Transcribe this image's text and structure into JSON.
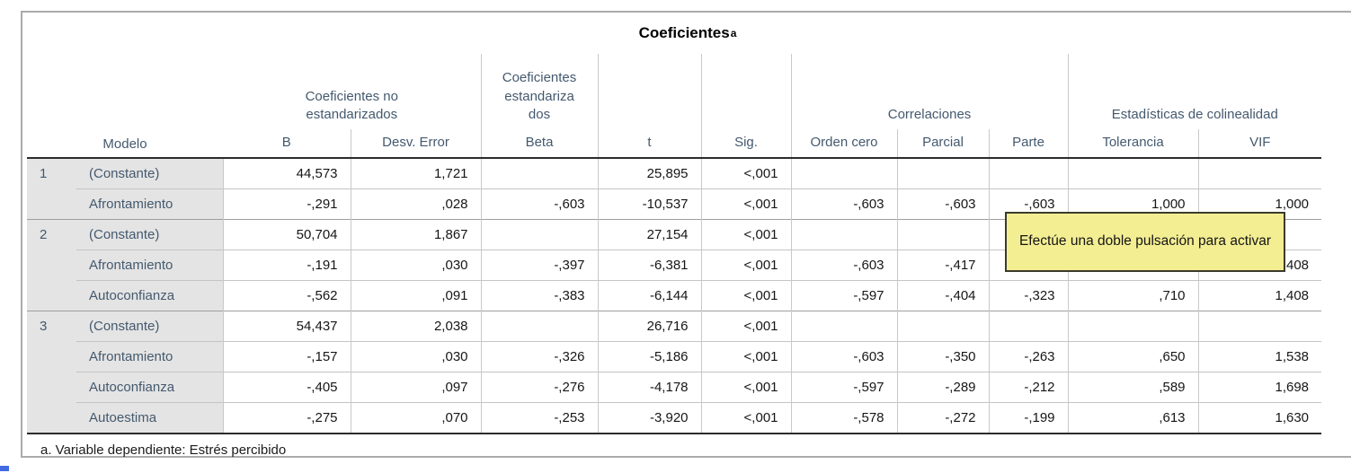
{
  "title": {
    "text": "Coeficientes",
    "superscript": "a"
  },
  "table": {
    "model_column_label": "Modelo",
    "spanners": [
      {
        "label": "Coeficientes no estandarizados"
      },
      {
        "label": "Coeficientes estandarizados"
      },
      {
        "label": ""
      },
      {
        "label": ""
      },
      {
        "label": "Correlaciones"
      },
      {
        "label": "Estadísticas de colinealidad"
      }
    ],
    "columns": [
      "B",
      "Desv. Error",
      "Beta",
      "t",
      "Sig.",
      "Orden cero",
      "Parcial",
      "Parte",
      "Tolerancia",
      "VIF"
    ],
    "rows": [
      {
        "model": "1",
        "variable": "(Constante)",
        "model_start": true,
        "values": [
          "44,573",
          "1,721",
          "",
          "25,895",
          "<,001",
          "",
          "",
          "",
          "",
          ""
        ]
      },
      {
        "model": "",
        "variable": "Afrontamiento",
        "model_start": false,
        "values": [
          "-,291",
          ",028",
          "-,603",
          "-10,537",
          "<,001",
          "-,603",
          "-,603",
          "-,603",
          "1,000",
          "1,000"
        ]
      },
      {
        "model": "2",
        "variable": "(Constante)",
        "model_start": true,
        "values": [
          "50,704",
          "1,867",
          "",
          "27,154",
          "<,001",
          "",
          "",
          "",
          "",
          ""
        ]
      },
      {
        "model": "",
        "variable": "Afrontamiento",
        "model_start": false,
        "values": [
          "-,191",
          ",030",
          "-,397",
          "-6,381",
          "<,001",
          "-,603",
          "-,417",
          "",
          "",
          "1,408"
        ]
      },
      {
        "model": "",
        "variable": "Autoconfianza",
        "model_start": false,
        "values": [
          "-,562",
          ",091",
          "-,383",
          "-6,144",
          "<,001",
          "-,597",
          "-,404",
          "-,323",
          ",710",
          "1,408"
        ]
      },
      {
        "model": "3",
        "variable": "(Constante)",
        "model_start": true,
        "values": [
          "54,437",
          "2,038",
          "",
          "26,716",
          "<,001",
          "",
          "",
          "",
          "",
          ""
        ]
      },
      {
        "model": "",
        "variable": "Afrontamiento",
        "model_start": false,
        "values": [
          "-,157",
          ",030",
          "-,326",
          "-5,186",
          "<,001",
          "-,603",
          "-,350",
          "-,263",
          ",650",
          "1,538"
        ]
      },
      {
        "model": "",
        "variable": "Autoconfianza",
        "model_start": false,
        "values": [
          "-,405",
          ",097",
          "-,276",
          "-4,178",
          "<,001",
          "-,597",
          "-,289",
          "-,212",
          ",589",
          "1,698"
        ]
      },
      {
        "model": "",
        "variable": "Autoestima",
        "model_start": false,
        "values": [
          "-,275",
          ",070",
          "-,253",
          "-3,920",
          "<,001",
          "-,578",
          "-,272",
          "-,199",
          ",613",
          "1,630"
        ]
      }
    ],
    "footnote": "a. Variable dependiente: Estrés percibido"
  },
  "tooltip": {
    "text": "Efectúe una doble pulsación para activar"
  },
  "colors": {
    "header_text": "#44596E",
    "label_bg": "#E4E4E4",
    "grid_light": "#C9C9C9",
    "model_line": "#9E9E9E",
    "heavy_line": "#2B2B2B",
    "outer_border": "#ABABAB",
    "tooltip_bg": "#F4EE93",
    "tooltip_border": "#3B3B2B",
    "artifact_blue": "#4169E1"
  }
}
